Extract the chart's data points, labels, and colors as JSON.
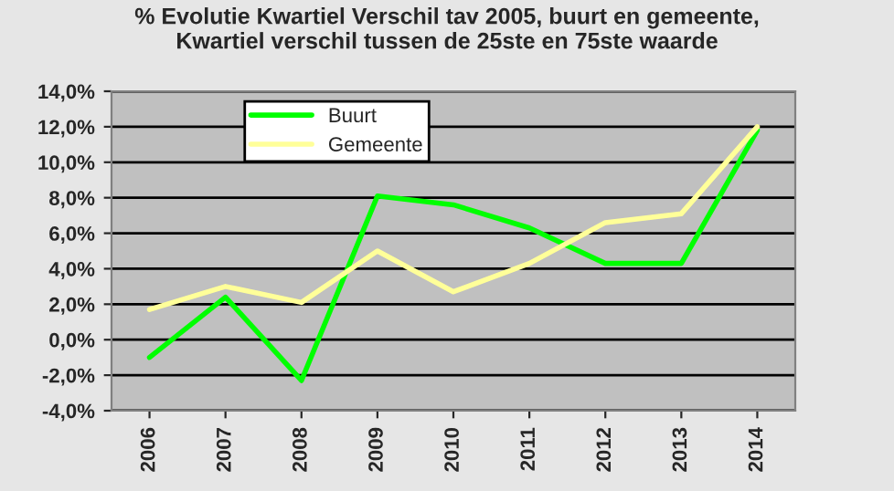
{
  "chart_data": {
    "type": "line",
    "title": "% Evolutie Kwartiel Verschil tav 2005, buurt en gemeente,\nKwartiel verschil tussen de 25ste en 75ste waarde",
    "categories": [
      "2006",
      "2007",
      "2008",
      "2009",
      "2010",
      "2011",
      "2012",
      "2013",
      "2014"
    ],
    "series": [
      {
        "name": "Buurt",
        "color": "#00ff00",
        "values": [
          -1.0,
          2.4,
          -2.3,
          8.1,
          7.6,
          6.3,
          4.3,
          4.3,
          11.8
        ]
      },
      {
        "name": "Gemeente",
        "color": "#ffff99",
        "values": [
          1.7,
          3.0,
          2.1,
          5.0,
          2.7,
          4.3,
          6.6,
          7.1,
          12.0
        ]
      }
    ],
    "ylim": [
      -4,
      14
    ],
    "yticks": [
      {
        "value": -4,
        "label": "-4,0%"
      },
      {
        "value": -2,
        "label": "-2,0%"
      },
      {
        "value": 0,
        "label": "0,0%"
      },
      {
        "value": 2,
        "label": "2,0%"
      },
      {
        "value": 4,
        "label": "4,0%"
      },
      {
        "value": 6,
        "label": "6,0%"
      },
      {
        "value": 8,
        "label": "8,0%"
      },
      {
        "value": 10,
        "label": "10,0%"
      },
      {
        "value": 12,
        "label": "12,0%"
      },
      {
        "value": 14,
        "label": "14,0%"
      }
    ],
    "grid": "y",
    "legend": "top left",
    "marker": "none",
    "line_style": "solid"
  }
}
